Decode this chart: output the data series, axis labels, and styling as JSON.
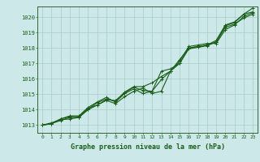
{
  "title": "Graphe pression niveau de la mer (hPa)",
  "bg_color": "#cce8e8",
  "plot_bg_color": "#cce8e8",
  "grid_color": "#aacccc",
  "line_color": "#1a5e1a",
  "marker_color": "#1a5e1a",
  "border_color": "#336633",
  "xlim": [
    -0.5,
    23.5
  ],
  "ylim": [
    1012.5,
    1020.7
  ],
  "xticks": [
    0,
    1,
    2,
    3,
    4,
    5,
    6,
    7,
    8,
    9,
    10,
    11,
    12,
    13,
    14,
    15,
    16,
    17,
    18,
    19,
    20,
    21,
    22,
    23
  ],
  "yticks": [
    1013,
    1014,
    1015,
    1016,
    1017,
    1018,
    1019,
    1020
  ],
  "series": [
    [
      1013.0,
      1013.1,
      1013.3,
      1013.5,
      1013.5,
      1014.0,
      1014.3,
      1014.65,
      1014.6,
      1015.1,
      1015.45,
      1015.25,
      1015.2,
      1016.5,
      1016.65,
      1017.0,
      1018.0,
      1018.1,
      1018.2,
      1018.4,
      1019.45,
      1019.65,
      1020.2,
      1020.6
    ],
    [
      1013.0,
      1013.15,
      1013.35,
      1013.4,
      1013.5,
      1014.05,
      1014.45,
      1014.7,
      1014.55,
      1015.15,
      1015.5,
      1015.5,
      1015.75,
      1016.15,
      1016.5,
      1017.25,
      1018.0,
      1018.1,
      1018.2,
      1018.5,
      1019.5,
      1019.7,
      1020.2,
      1020.35
    ],
    [
      1013.0,
      1013.1,
      1013.4,
      1013.6,
      1013.6,
      1014.15,
      1014.5,
      1014.8,
      1014.5,
      1015.05,
      1015.35,
      1015.05,
      1015.2,
      1015.95,
      1016.5,
      1017.15,
      1018.1,
      1018.2,
      1018.3,
      1018.3,
      1019.2,
      1019.5,
      1020.05,
      1020.3
    ],
    [
      1013.0,
      1013.1,
      1013.4,
      1013.55,
      1013.55,
      1014.1,
      1014.3,
      1014.6,
      1014.4,
      1014.85,
      1015.2,
      1015.4,
      1015.05,
      1015.2,
      1016.5,
      1017.0,
      1017.95,
      1018.05,
      1018.15,
      1018.4,
      1019.35,
      1019.55,
      1019.95,
      1020.2
    ]
  ]
}
